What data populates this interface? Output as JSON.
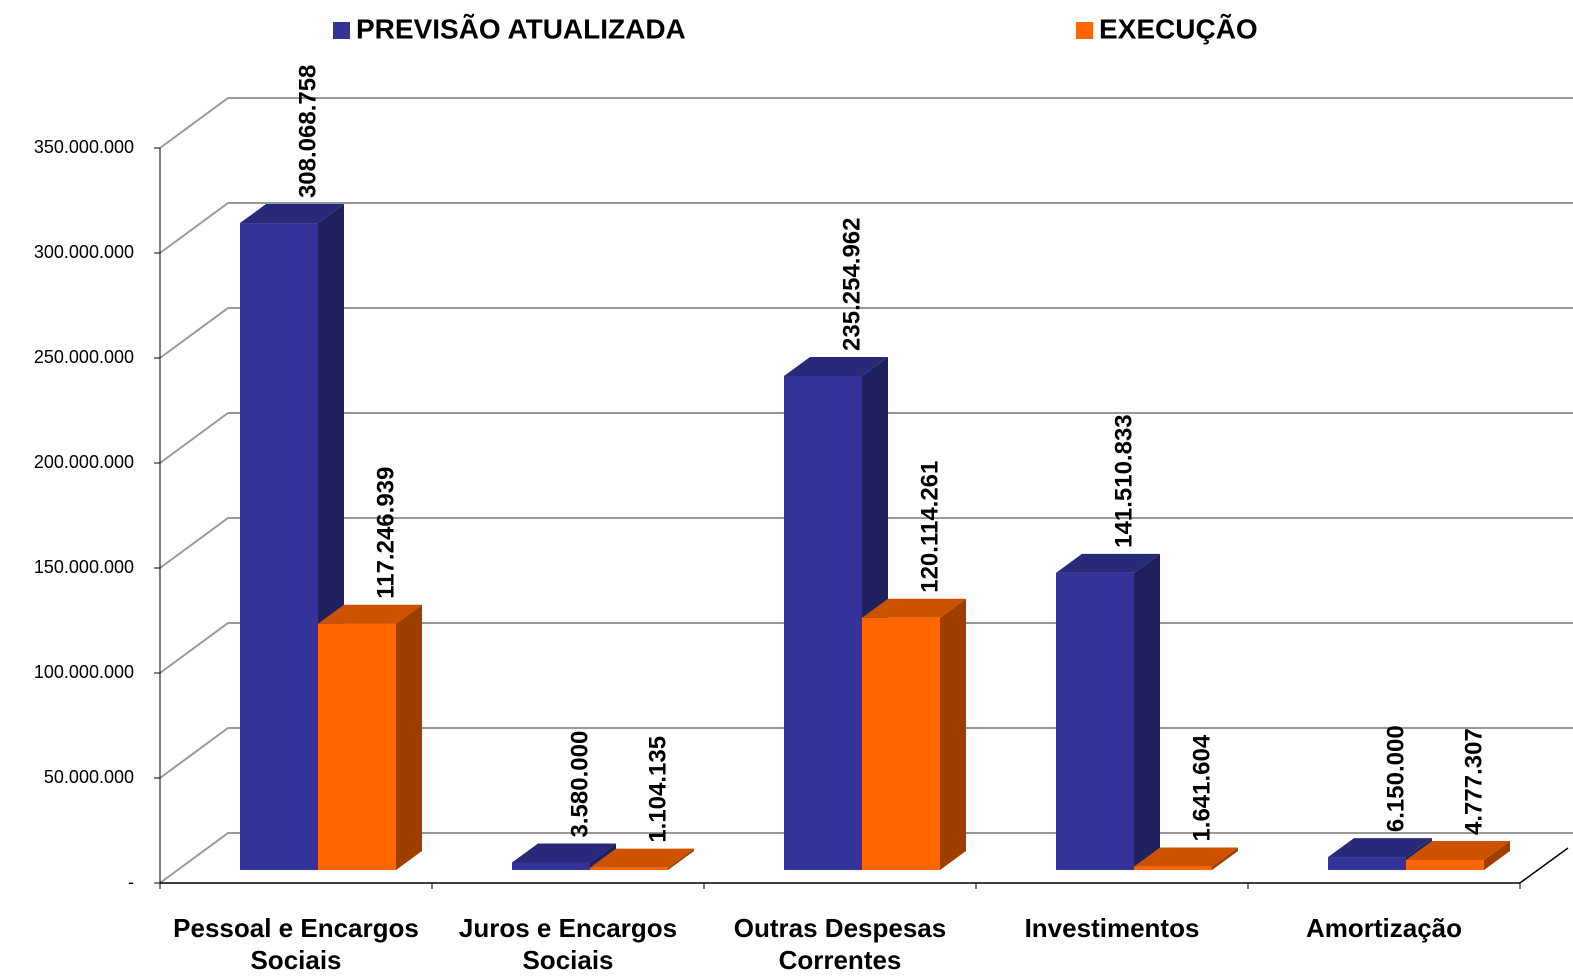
{
  "chart_data": {
    "type": "bar3d",
    "categories": [
      "Pessoal e Encargos Sociais",
      "Juros e Encargos Sociais",
      "Outras Despesas Correntes",
      "Investimentos",
      "Amortização"
    ],
    "series": [
      {
        "name": "PREVISÃO ATUALIZADA",
        "color": "#333399",
        "values": [
          308068758,
          3580000,
          235254962,
          141510833,
          6150000
        ],
        "value_labels": [
          "308.068.758",
          "3.580.000",
          "235.254.962",
          "141.510.833",
          "6.150.000"
        ]
      },
      {
        "name": "EXECUÇÃO",
        "color": "#ff6600",
        "values": [
          117246939,
          1104135,
          120114261,
          1641604,
          4777307
        ],
        "value_labels": [
          "117.246.939",
          "1.104.135",
          "120.114.261",
          "1.641.604",
          "4.777.307"
        ]
      }
    ],
    "ylim": [
      0,
      350000000
    ],
    "yticks": [
      {
        "value": 0,
        "label": "-"
      },
      {
        "value": 50000000,
        "label": "50.000.000"
      },
      {
        "value": 100000000,
        "label": "100.000.000"
      },
      {
        "value": 150000000,
        "label": "150.000.000"
      },
      {
        "value": 200000000,
        "label": "200.000.000"
      },
      {
        "value": 250000000,
        "label": "250.000.000"
      },
      {
        "value": 300000000,
        "label": "300.000.000"
      },
      {
        "value": 350000000,
        "label": "350.000.000"
      }
    ],
    "grid": true
  }
}
